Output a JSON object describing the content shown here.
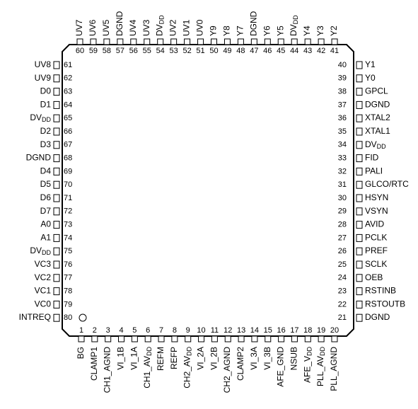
{
  "pins": {
    "left": [
      {
        "number": 61,
        "name": "UV8"
      },
      {
        "number": 62,
        "name": "UV9"
      },
      {
        "number": 63,
        "name": "D0"
      },
      {
        "number": 64,
        "name": "D1"
      },
      {
        "number": 65,
        "name": "DV",
        "sub": "DD"
      },
      {
        "number": 66,
        "name": "D2"
      },
      {
        "number": 67,
        "name": "D3"
      },
      {
        "number": 68,
        "name": "DGND"
      },
      {
        "number": 69,
        "name": "D4"
      },
      {
        "number": 70,
        "name": "D5"
      },
      {
        "number": 71,
        "name": "D6"
      },
      {
        "number": 72,
        "name": "D7"
      },
      {
        "number": 73,
        "name": "A0"
      },
      {
        "number": 74,
        "name": "A1"
      },
      {
        "number": 75,
        "name": "DV",
        "sub": "DD"
      },
      {
        "number": 76,
        "name": "VC3"
      },
      {
        "number": 77,
        "name": "VC2"
      },
      {
        "number": 78,
        "name": "VC1"
      },
      {
        "number": 79,
        "name": "VC0"
      },
      {
        "number": 80,
        "name": "INTREQ"
      }
    ],
    "right": [
      {
        "number": 40,
        "name": "Y1"
      },
      {
        "number": 39,
        "name": "Y0"
      },
      {
        "number": 38,
        "name": "GPCL"
      },
      {
        "number": 37,
        "name": "DGND"
      },
      {
        "number": 36,
        "name": "XTAL2"
      },
      {
        "number": 35,
        "name": "XTAL1"
      },
      {
        "number": 34,
        "name": "DV",
        "sub": "DD"
      },
      {
        "number": 33,
        "name": "FID"
      },
      {
        "number": 32,
        "name": "PALI"
      },
      {
        "number": 31,
        "name": "GLCO/RTC"
      },
      {
        "number": 30,
        "name": "HSYN"
      },
      {
        "number": 29,
        "name": "VSYN"
      },
      {
        "number": 28,
        "name": "AVID"
      },
      {
        "number": 27,
        "name": "PCLK"
      },
      {
        "number": 26,
        "name": "PREF"
      },
      {
        "number": 25,
        "name": "SCLK"
      },
      {
        "number": 24,
        "name": "OEB"
      },
      {
        "number": 23,
        "name": "RSTINB"
      },
      {
        "number": 22,
        "name": "RSTOUTB"
      },
      {
        "number": 21,
        "name": "DGND"
      }
    ],
    "top": [
      {
        "number": 60,
        "name": "UV7"
      },
      {
        "number": 59,
        "name": "UV6"
      },
      {
        "number": 58,
        "name": "UV5"
      },
      {
        "number": 57,
        "name": "DGND"
      },
      {
        "number": 56,
        "name": "UV4"
      },
      {
        "number": 55,
        "name": "UV3"
      },
      {
        "number": 54,
        "name": "DV",
        "sub": "DD"
      },
      {
        "number": 53,
        "name": "UV2"
      },
      {
        "number": 52,
        "name": "UV1"
      },
      {
        "number": 51,
        "name": "UV0"
      },
      {
        "number": 50,
        "name": "Y9"
      },
      {
        "number": 49,
        "name": "Y8"
      },
      {
        "number": 48,
        "name": "Y7"
      },
      {
        "number": 47,
        "name": "DGND"
      },
      {
        "number": 46,
        "name": "Y6"
      },
      {
        "number": 45,
        "name": "Y5"
      },
      {
        "number": 44,
        "name": "DV",
        "sub": "DD"
      },
      {
        "number": 43,
        "name": "Y4"
      },
      {
        "number": 42,
        "name": "Y3"
      },
      {
        "number": 41,
        "name": "Y2"
      }
    ],
    "bottom": [
      {
        "number": 1,
        "name": "BG"
      },
      {
        "number": 2,
        "name": "CLAMP1"
      },
      {
        "number": 3,
        "name": "CH1_AGND"
      },
      {
        "number": 4,
        "name": "VI_1B"
      },
      {
        "number": 5,
        "name": "VI_1A"
      },
      {
        "number": 6,
        "name": "CH1_AV",
        "sub": "DD"
      },
      {
        "number": 7,
        "name": "REFM"
      },
      {
        "number": 8,
        "name": "REFP"
      },
      {
        "number": 9,
        "name": "CH2_AV",
        "sub": "DD"
      },
      {
        "number": 10,
        "name": "VI_2A"
      },
      {
        "number": 11,
        "name": "VI_2B"
      },
      {
        "number": 12,
        "name": "CH2_AGND"
      },
      {
        "number": 13,
        "name": "CLAMP2"
      },
      {
        "number": 14,
        "name": "VI_3A"
      },
      {
        "number": 15,
        "name": "VI_3B"
      },
      {
        "number": 16,
        "name": "AFE_GND"
      },
      {
        "number": 17,
        "name": "NSUB"
      },
      {
        "number": 18,
        "name": "AFE_V",
        "sub": "DD"
      },
      {
        "number": 19,
        "name": "PLL_AV",
        "sub": "DD"
      },
      {
        "number": 20,
        "name": "PLL_AGND"
      }
    ]
  }
}
